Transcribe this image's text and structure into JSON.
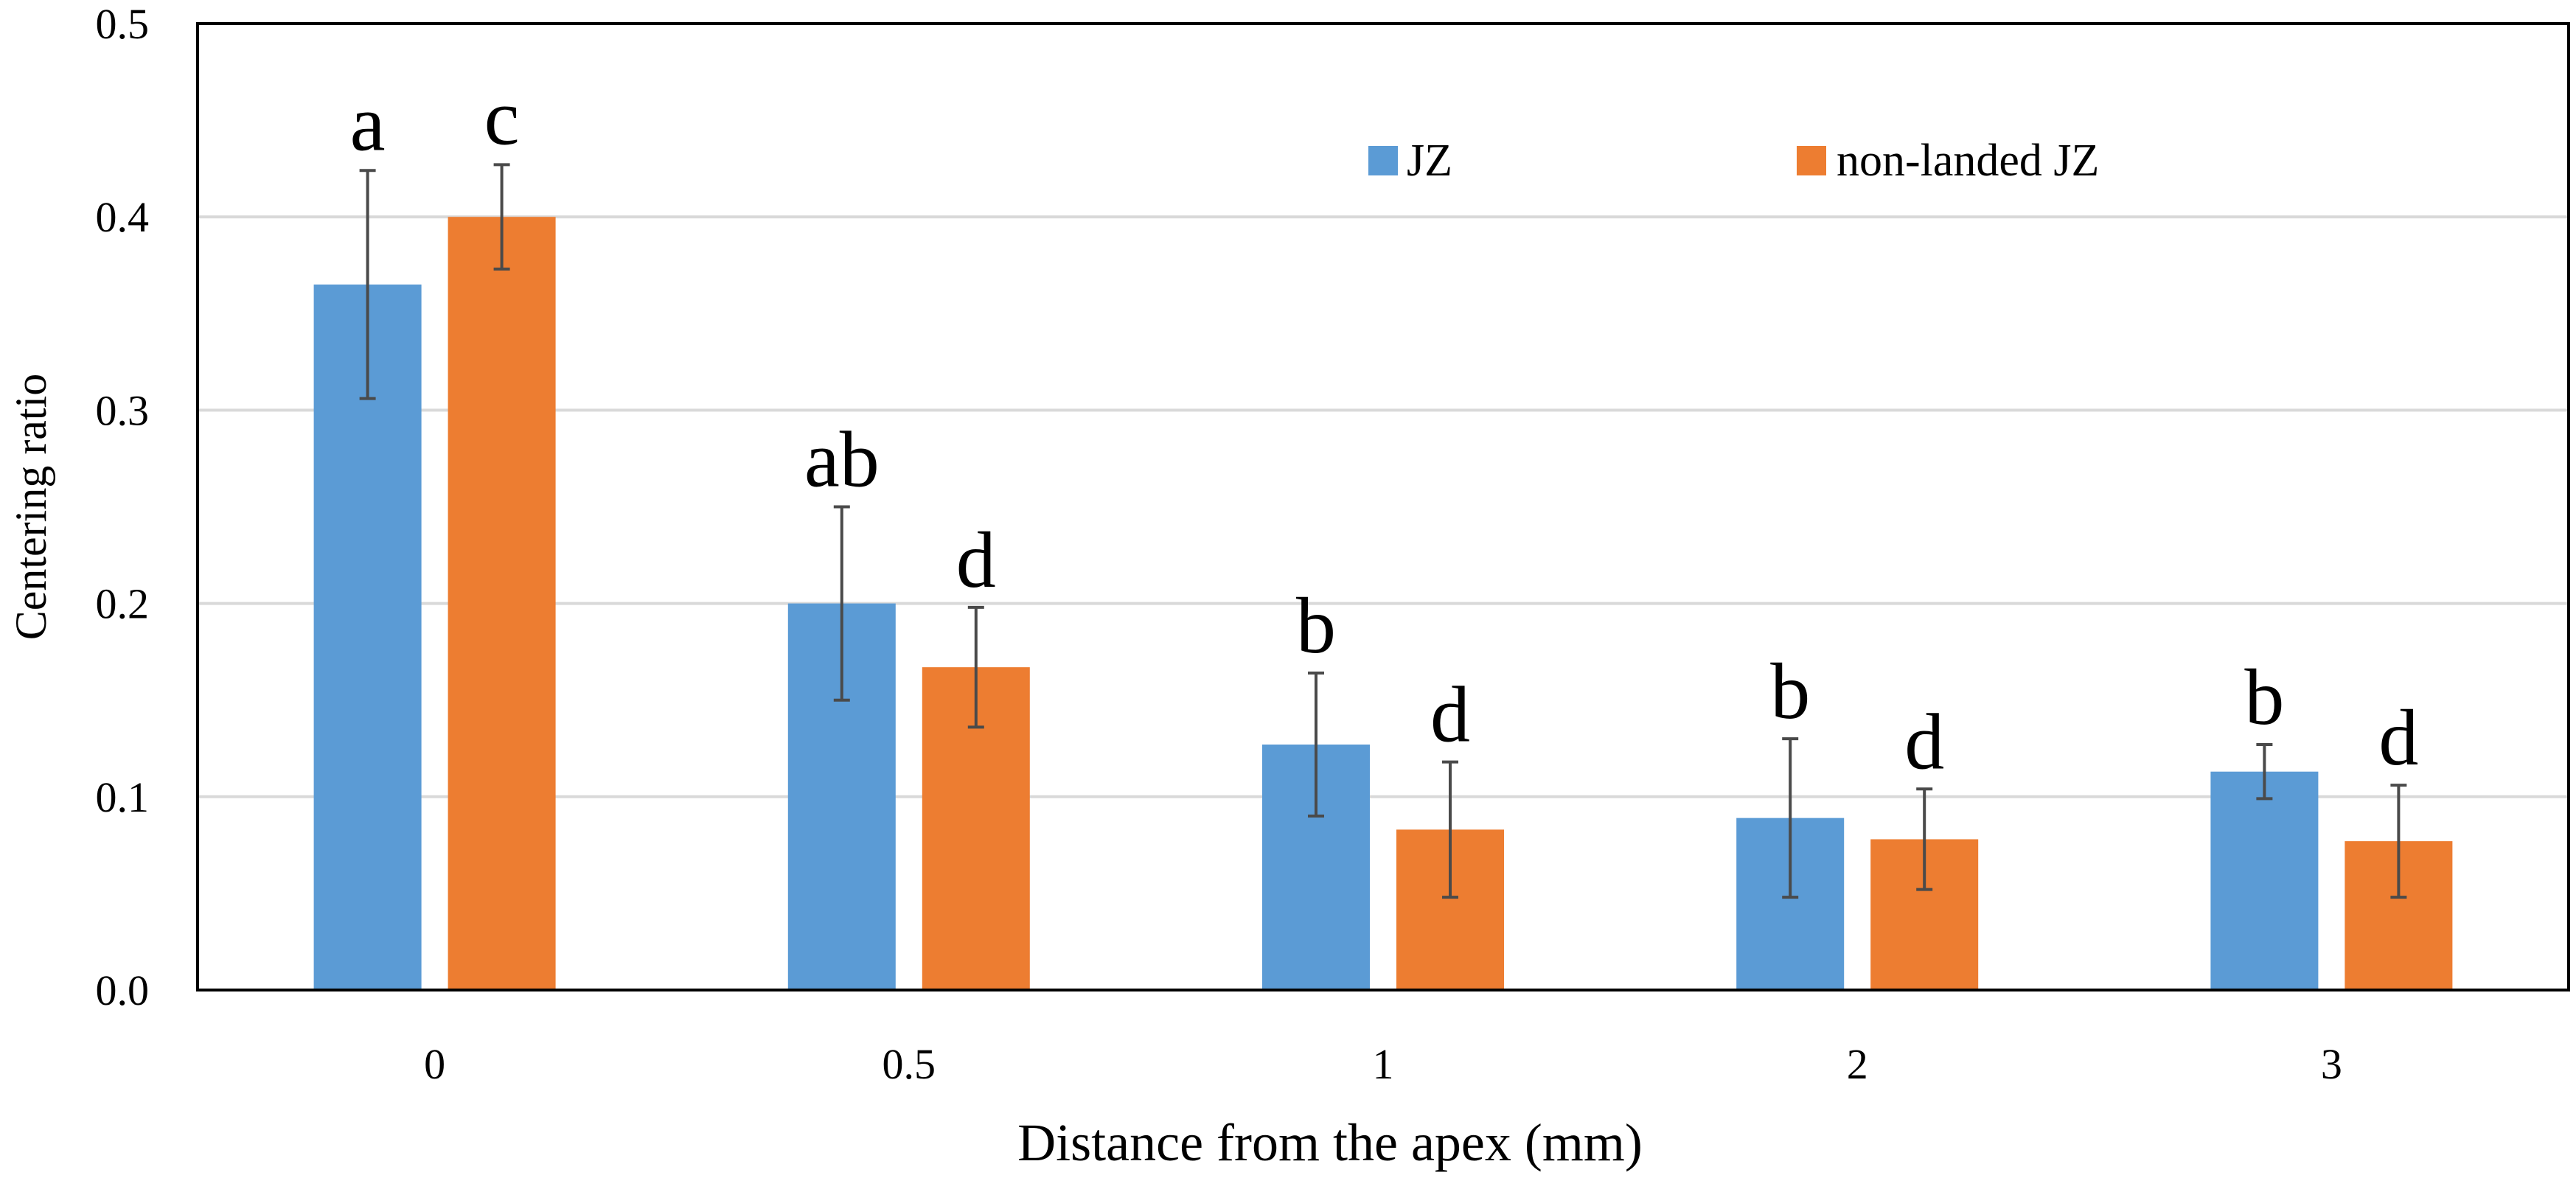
{
  "chart_data": {
    "type": "bar",
    "title": "",
    "xlabel": "Distance from the apex (mm)",
    "ylabel": "Centering ratio",
    "ylim": [
      0,
      0.5
    ],
    "yticks": [
      "0.0",
      "0.1",
      "0.2",
      "0.3",
      "0.4",
      "0.5"
    ],
    "categories": [
      "0",
      "0.5",
      "1",
      "2",
      "3"
    ],
    "grid": true,
    "legend_position": "top-right",
    "series": [
      {
        "name": "JZ",
        "color": "#5B9BD5",
        "values": [
          0.365,
          0.2,
          0.127,
          0.089,
          0.113
        ],
        "error": [
          0.059,
          0.05,
          0.037,
          0.041,
          0.014
        ],
        "labels": [
          "a",
          "ab",
          "b",
          "b",
          "b"
        ]
      },
      {
        "name": "non-landed JZ",
        "color": "#ED7D31",
        "values": [
          0.4,
          0.167,
          0.083,
          0.078,
          0.077
        ],
        "error": [
          0.027,
          0.031,
          0.035,
          0.026,
          0.029
        ],
        "labels": [
          "c",
          "d",
          "d",
          "d",
          "d"
        ]
      }
    ]
  }
}
